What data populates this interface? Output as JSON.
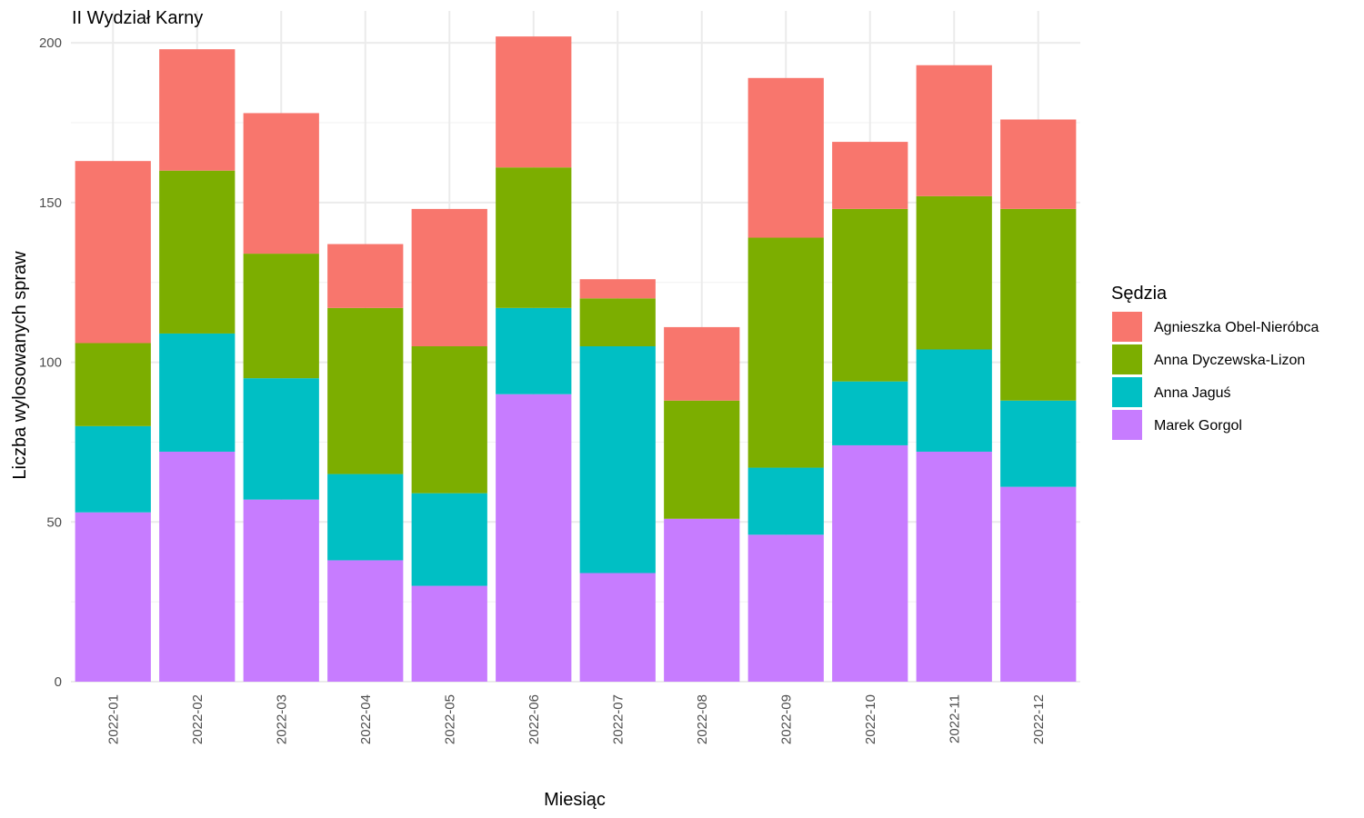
{
  "chart_data": {
    "type": "bar",
    "stacked": true,
    "title": "II Wydział Karny",
    "xlabel": "Miesiąc",
    "ylabel": "Liczba wylosowanych spraw",
    "ylim": [
      0,
      210
    ],
    "yticks": [
      0,
      50,
      100,
      150,
      200
    ],
    "grid": true,
    "legend": {
      "title": "Sędzia",
      "position": "right"
    },
    "categories": [
      "2022-01",
      "2022-02",
      "2022-03",
      "2022-04",
      "2022-05",
      "2022-06",
      "2022-07",
      "2022-08",
      "2022-09",
      "2022-10",
      "2022-11",
      "2022-12"
    ],
    "series": [
      {
        "name": "Marek Gorgol",
        "color": "#C77CFF",
        "values": [
          53,
          72,
          57,
          38,
          30,
          90,
          34,
          51,
          46,
          74,
          72,
          61
        ]
      },
      {
        "name": "Anna Jaguś",
        "color": "#00BFC4",
        "values": [
          27,
          37,
          38,
          27,
          29,
          27,
          71,
          0,
          21,
          20,
          32,
          27
        ]
      },
      {
        "name": "Anna Dyczewska-Lizon",
        "color": "#7CAE00",
        "values": [
          26,
          51,
          39,
          52,
          46,
          44,
          15,
          37,
          72,
          54,
          48,
          60
        ]
      },
      {
        "name": "Agnieszka Obel-Nieróbca",
        "color": "#F8766D",
        "values": [
          57,
          38,
          44,
          20,
          43,
          41,
          6,
          23,
          50,
          21,
          41,
          28
        ]
      }
    ],
    "legend_order": [
      "Agnieszka Obel-Nieróbca",
      "Anna Dyczewska-Lizon",
      "Anna Jaguś",
      "Marek Gorgol"
    ]
  }
}
